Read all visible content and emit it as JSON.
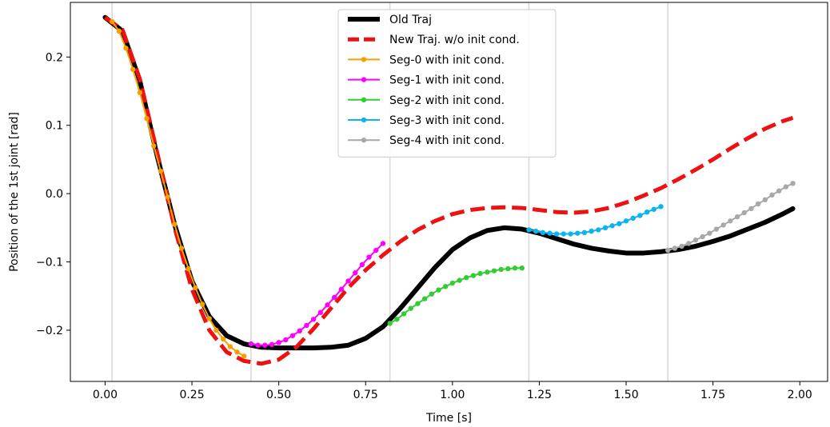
{
  "chart_data": {
    "type": "line",
    "xlabel": "Time [s]",
    "ylabel": "Position of the 1st joint [rad]",
    "xlim": [
      -0.1,
      2.08
    ],
    "ylim": [
      -0.275,
      0.28
    ],
    "xticks": [
      0.0,
      0.25,
      0.5,
      0.75,
      1.0,
      1.25,
      1.5,
      1.75,
      2.0
    ],
    "xtick_labels": [
      "0.00",
      "0.25",
      "0.50",
      "0.75",
      "1.00",
      "1.25",
      "1.50",
      "1.75",
      "2.00"
    ],
    "yticks": [
      -0.2,
      -0.1,
      0.0,
      0.1,
      0.2
    ],
    "ytick_labels": [
      "−0.2",
      "−0.1",
      "0.0",
      "0.1",
      "0.2"
    ],
    "vlines": [
      0.02,
      0.42,
      0.82,
      1.22,
      1.62
    ],
    "grid": false,
    "legend_position": "top-center",
    "series": [
      {
        "name": "Old Traj",
        "color": "#000000",
        "style": "solid",
        "x": [
          0.0,
          0.05,
          0.1,
          0.15,
          0.2,
          0.25,
          0.3,
          0.35,
          0.4,
          0.45,
          0.5,
          0.55,
          0.6,
          0.65,
          0.7,
          0.75,
          0.8,
          0.85,
          0.9,
          0.95,
          1.0,
          1.05,
          1.1,
          1.15,
          1.2,
          1.25,
          1.3,
          1.35,
          1.4,
          1.45,
          1.5,
          1.55,
          1.6,
          1.65,
          1.7,
          1.75,
          1.8,
          1.85,
          1.9,
          1.95,
          1.98
        ],
        "y": [
          0.258,
          0.238,
          0.165,
          0.055,
          -0.045,
          -0.128,
          -0.18,
          -0.208,
          -0.22,
          -0.225,
          -0.226,
          -0.226,
          -0.226,
          -0.225,
          -0.222,
          -0.212,
          -0.195,
          -0.168,
          -0.138,
          -0.108,
          -0.082,
          -0.065,
          -0.054,
          -0.05,
          -0.052,
          -0.058,
          -0.066,
          -0.074,
          -0.08,
          -0.084,
          -0.087,
          -0.087,
          -0.085,
          -0.082,
          -0.077,
          -0.07,
          -0.062,
          -0.052,
          -0.042,
          -0.03,
          -0.022
        ]
      },
      {
        "name": "New Traj. w/o init cond.",
        "color": "#ee1111",
        "style": "dashed",
        "x": [
          0.0,
          0.05,
          0.1,
          0.15,
          0.2,
          0.25,
          0.3,
          0.35,
          0.4,
          0.45,
          0.5,
          0.55,
          0.6,
          0.65,
          0.7,
          0.75,
          0.8,
          0.85,
          0.9,
          0.95,
          1.0,
          1.05,
          1.1,
          1.15,
          1.2,
          1.25,
          1.3,
          1.35,
          1.4,
          1.45,
          1.5,
          1.55,
          1.6,
          1.65,
          1.7,
          1.75,
          1.8,
          1.85,
          1.9,
          1.95,
          1.98
        ],
        "y": [
          0.258,
          0.24,
          0.168,
          0.06,
          -0.05,
          -0.14,
          -0.2,
          -0.232,
          -0.245,
          -0.249,
          -0.243,
          -0.225,
          -0.198,
          -0.168,
          -0.138,
          -0.112,
          -0.09,
          -0.07,
          -0.053,
          -0.04,
          -0.03,
          -0.024,
          -0.021,
          -0.02,
          -0.021,
          -0.024,
          -0.027,
          -0.028,
          -0.026,
          -0.021,
          -0.013,
          -0.003,
          0.008,
          0.021,
          0.035,
          0.05,
          0.066,
          0.081,
          0.095,
          0.106,
          0.111
        ]
      },
      {
        "name": "Seg-0 with init cond.",
        "color": "#f5a000",
        "style": "marker",
        "x": [
          0.02,
          0.04,
          0.06,
          0.08,
          0.1,
          0.12,
          0.14,
          0.16,
          0.18,
          0.2,
          0.22,
          0.24,
          0.26,
          0.28,
          0.3,
          0.32,
          0.34,
          0.36,
          0.38,
          0.4
        ],
        "y": [
          0.252,
          0.238,
          0.213,
          0.182,
          0.148,
          0.11,
          0.07,
          0.033,
          -0.005,
          -0.045,
          -0.08,
          -0.11,
          -0.138,
          -0.162,
          -0.183,
          -0.2,
          -0.213,
          -0.224,
          -0.232,
          -0.238
        ]
      },
      {
        "name": "Seg-1 with init cond.",
        "color": "#ff00ff",
        "style": "marker",
        "x": [
          0.42,
          0.44,
          0.46,
          0.48,
          0.5,
          0.52,
          0.54,
          0.56,
          0.58,
          0.6,
          0.62,
          0.64,
          0.66,
          0.68,
          0.7,
          0.72,
          0.74,
          0.76,
          0.78,
          0.8
        ],
        "y": [
          -0.22,
          -0.222,
          -0.222,
          -0.221,
          -0.218,
          -0.214,
          -0.208,
          -0.201,
          -0.193,
          -0.184,
          -0.174,
          -0.163,
          -0.152,
          -0.14,
          -0.128,
          -0.116,
          -0.104,
          -0.093,
          -0.083,
          -0.073
        ]
      },
      {
        "name": "Seg-2 with init cond.",
        "color": "#33cc33",
        "style": "marker",
        "x": [
          0.82,
          0.84,
          0.86,
          0.88,
          0.9,
          0.92,
          0.94,
          0.96,
          0.98,
          1.0,
          1.02,
          1.04,
          1.06,
          1.08,
          1.1,
          1.12,
          1.14,
          1.16,
          1.18,
          1.2
        ],
        "y": [
          -0.19,
          -0.184,
          -0.176,
          -0.168,
          -0.161,
          -0.154,
          -0.147,
          -0.141,
          -0.136,
          -0.131,
          -0.127,
          -0.123,
          -0.12,
          -0.117,
          -0.115,
          -0.113,
          -0.111,
          -0.11,
          -0.109,
          -0.109
        ]
      },
      {
        "name": "Seg-3 with init cond.",
        "color": "#0ab4f0",
        "style": "marker",
        "x": [
          1.22,
          1.24,
          1.26,
          1.28,
          1.3,
          1.32,
          1.34,
          1.36,
          1.38,
          1.4,
          1.42,
          1.44,
          1.46,
          1.48,
          1.5,
          1.52,
          1.54,
          1.56,
          1.58,
          1.6
        ],
        "y": [
          -0.053,
          -0.055,
          -0.057,
          -0.058,
          -0.059,
          -0.059,
          -0.059,
          -0.058,
          -0.057,
          -0.055,
          -0.053,
          -0.05,
          -0.047,
          -0.044,
          -0.04,
          -0.036,
          -0.032,
          -0.027,
          -0.023,
          -0.019
        ]
      },
      {
        "name": "Seg-4 with init cond.",
        "color": "#a8a8a8",
        "style": "marker",
        "x": [
          1.62,
          1.64,
          1.66,
          1.68,
          1.7,
          1.72,
          1.74,
          1.76,
          1.78,
          1.8,
          1.82,
          1.84,
          1.86,
          1.88,
          1.9,
          1.92,
          1.94,
          1.96,
          1.98
        ],
        "y": [
          -0.083,
          -0.08,
          -0.077,
          -0.073,
          -0.068,
          -0.063,
          -0.058,
          -0.052,
          -0.046,
          -0.04,
          -0.034,
          -0.028,
          -0.022,
          -0.015,
          -0.009,
          -0.002,
          0.004,
          0.01,
          0.015
        ]
      }
    ]
  }
}
